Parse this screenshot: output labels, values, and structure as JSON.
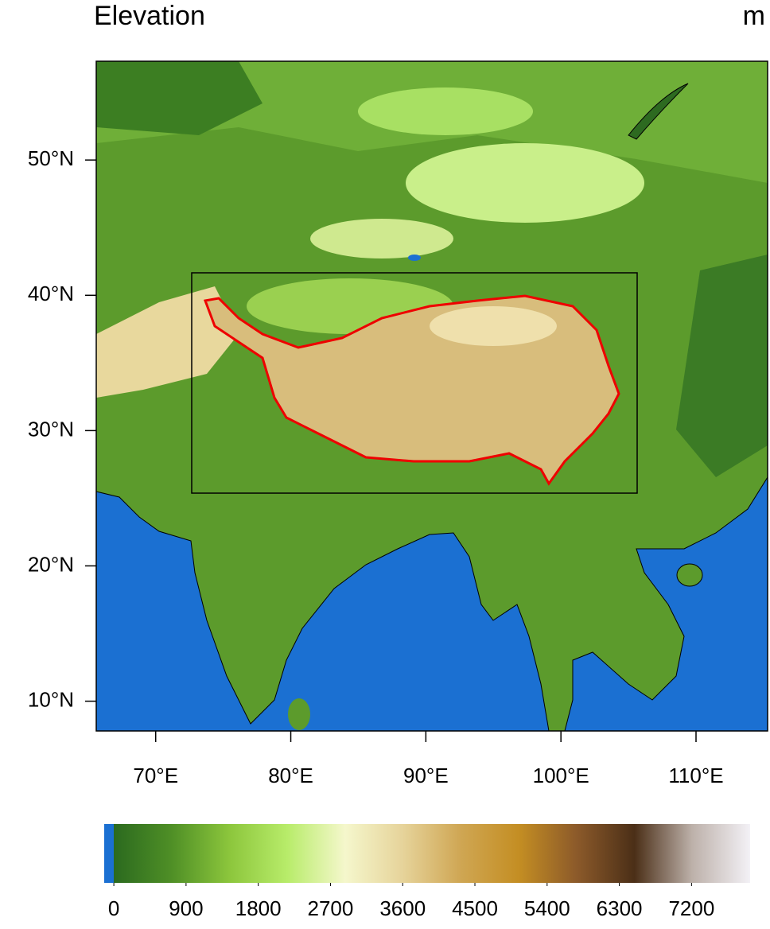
{
  "chart_data": {
    "type": "map",
    "title": "Elevation",
    "unit": "m",
    "xlim": [
      65.6,
      115.3
    ],
    "ylim": [
      7.8,
      57.3
    ],
    "xticks": [
      {
        "value": 70,
        "label": "70°E"
      },
      {
        "value": 80,
        "label": "80°E"
      },
      {
        "value": 90,
        "label": "90°E"
      },
      {
        "value": 100,
        "label": "100°E"
      },
      {
        "value": 110,
        "label": "110°E"
      }
    ],
    "yticks": [
      {
        "value": 10,
        "label": "10°N"
      },
      {
        "value": 20,
        "label": "20°N"
      },
      {
        "value": 30,
        "label": "30°N"
      },
      {
        "value": 40,
        "label": "40°N"
      },
      {
        "value": 50,
        "label": "50°N"
      }
    ],
    "colorbar": {
      "range": [
        -120,
        7930
      ],
      "ticks": [
        0,
        900,
        1800,
        2700,
        3600,
        4500,
        5400,
        6300,
        7200
      ],
      "ocean_color": "#1b70d2",
      "colors": [
        "#2b6a1f",
        "#4f8f26",
        "#8cc63c",
        "#b8ec6a",
        "#f5f7cc",
        "#e6d39a",
        "#cfa653",
        "#c48e23",
        "#8c5a2a",
        "#4b2f17",
        "#bdb1aa",
        "#f3f1f6"
      ]
    }
  }
}
